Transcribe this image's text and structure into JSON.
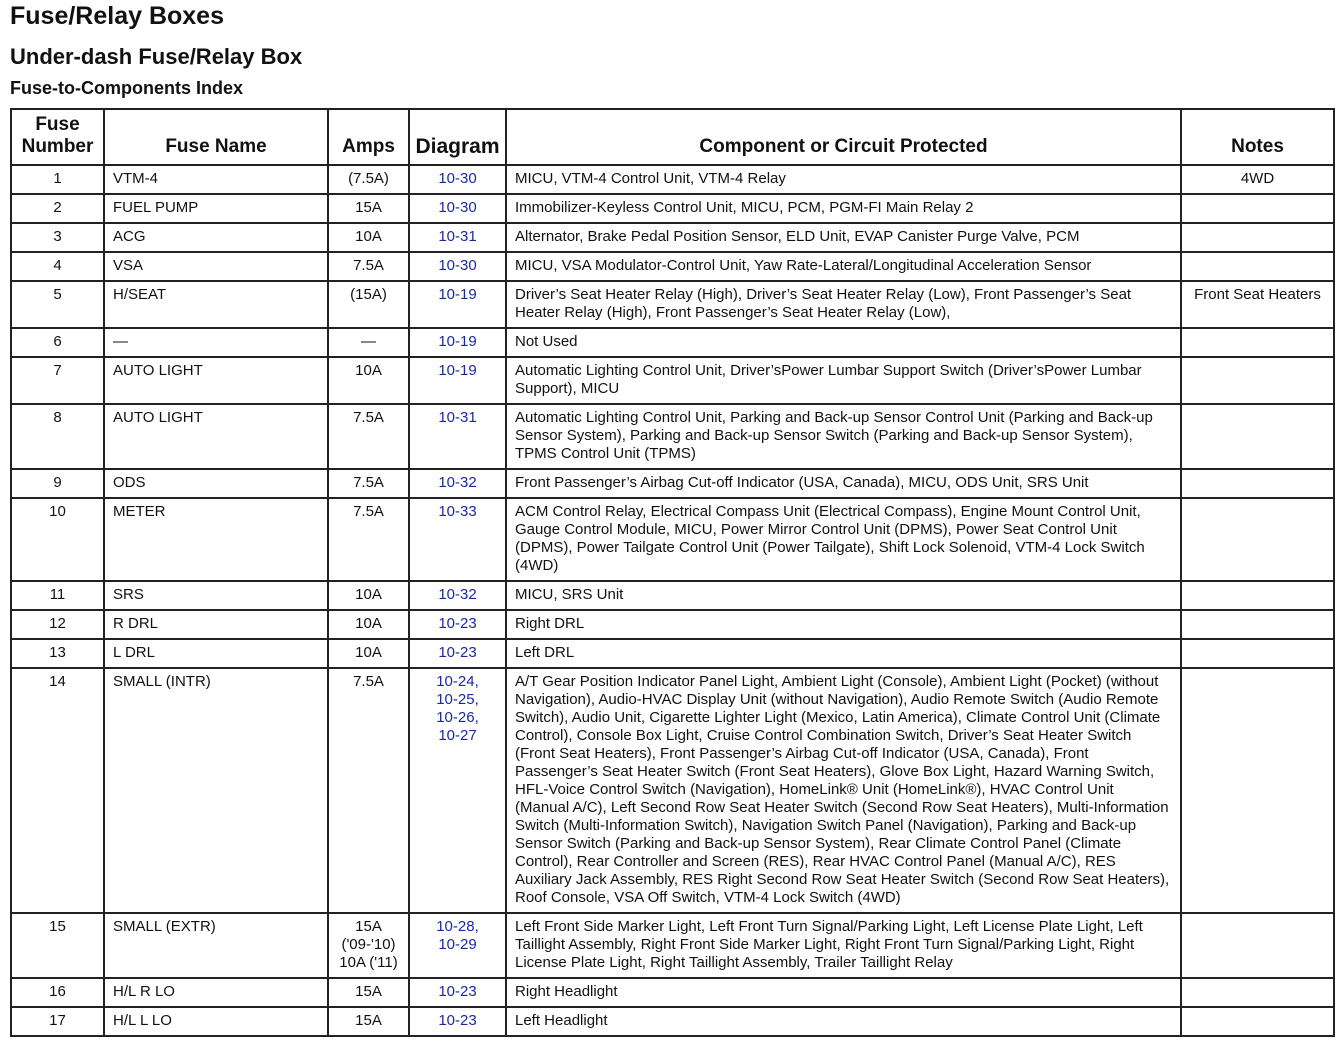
{
  "titles": {
    "h1": "Fuse/Relay Boxes",
    "h2": "Under-dash Fuse/Relay Box",
    "h3": "Fuse-to-Components Index"
  },
  "table": {
    "headers": [
      "Fuse Number",
      "Fuse Name",
      "Amps",
      "Diagram",
      "Component or Circuit Protected",
      "Notes"
    ],
    "rows": [
      {
        "number": "1",
        "name": "VTM-4",
        "amps": "(7.5A)",
        "diagram": "10-30",
        "component": "MICU, VTM-4 Control Unit, VTM-4 Relay",
        "notes": "4WD"
      },
      {
        "number": "2",
        "name": "FUEL PUMP",
        "amps": "15A",
        "diagram": "10-30",
        "component": "Immobilizer-Keyless Control Unit, MICU, PCM, PGM-FI Main Relay 2",
        "notes": ""
      },
      {
        "number": "3",
        "name": "ACG",
        "amps": "10A",
        "diagram": "10-31",
        "component": "Alternator, Brake Pedal Position Sensor, ELD Unit, EVAP Canister Purge Valve, PCM",
        "notes": ""
      },
      {
        "number": "4",
        "name": "VSA",
        "amps": "7.5A",
        "diagram": "10-30",
        "component": "MICU, VSA Modulator-Control Unit, Yaw Rate-Lateral/Longitudinal Acceleration Sensor",
        "notes": ""
      },
      {
        "number": "5",
        "name": "H/SEAT",
        "amps": "(15A)",
        "diagram": "10-19",
        "component": "Driver’s Seat Heater Relay (High), Driver’s Seat Heater Relay (Low), Front Passenger’s Seat Heater Relay (High), Front Passenger’s Seat Heater Relay (Low),",
        "notes": "Front Seat Heaters"
      },
      {
        "number": "6",
        "name": "—",
        "amps": "—",
        "diagram": "10-19",
        "component": "Not Used",
        "notes": ""
      },
      {
        "number": "7",
        "name": "AUTO LIGHT",
        "amps": "10A",
        "diagram": "10-19",
        "component": "Automatic Lighting Control Unit, Driver’sPower Lumbar Support Switch (Driver’sPower Lumbar Support), MICU",
        "notes": ""
      },
      {
        "number": "8",
        "name": "AUTO LIGHT",
        "amps": "7.5A",
        "diagram": "10-31",
        "component": "Automatic Lighting Control Unit, Parking and Back-up Sensor Control Unit (Parking and Back-up Sensor System), Parking and Back-up Sensor Switch (Parking and Back-up Sensor System), TPMS Control Unit (TPMS)",
        "notes": ""
      },
      {
        "number": "9",
        "name": "ODS",
        "amps": "7.5A",
        "diagram": "10-32",
        "component": "Front Passenger’s Airbag Cut-off Indicator (USA, Canada), MICU, ODS Unit, SRS Unit",
        "notes": ""
      },
      {
        "number": "10",
        "name": "METER",
        "amps": "7.5A",
        "diagram": "10-33",
        "component": "ACM Control Relay, Electrical Compass Unit (Electrical Compass), Engine Mount Control Unit, Gauge Control Module, MICU, Power Mirror Control Unit (DPMS), Power Seat Control Unit (DPMS), Power Tailgate Control Unit (Power Tailgate), Shift Lock Solenoid, VTM-4 Lock Switch (4WD)",
        "notes": ""
      },
      {
        "number": "11",
        "name": "SRS",
        "amps": "10A",
        "diagram": "10-32",
        "component": "MICU, SRS Unit",
        "notes": ""
      },
      {
        "number": "12",
        "name": "R DRL",
        "amps": "10A",
        "diagram": "10-23",
        "component": "Right DRL",
        "notes": ""
      },
      {
        "number": "13",
        "name": "L DRL",
        "amps": "10A",
        "diagram": "10-23",
        "component": "Left DRL",
        "notes": ""
      },
      {
        "number": "14",
        "name": "SMALL (INTR)",
        "amps": "7.5A",
        "diagram": "10-24, 10-25, 10-26, 10-27",
        "component": "A/T Gear Position Indicator Panel Light, Ambient Light (Console), Ambient Light (Pocket) (without Navigation), Audio-HVAC Display Unit (without Navigation), Audio Remote Switch (Audio Remote Switch), Audio Unit, Cigarette Lighter Light (Mexico, Latin America), Climate Control Unit (Climate Control), Console Box Light, Cruise Control Combination Switch, Driver’s Seat Heater Switch (Front Seat Heaters), Front Passenger’s Airbag Cut-off Indicator (USA, Canada), Front Passenger’s Seat Heater Switch (Front Seat Heaters), Glove Box Light, Hazard Warning Switch, HFL-Voice Control Switch (Navigation), HomeLink® Unit (HomeLink®), HVAC Control Unit (Manual A/C), Left Second Row Seat Heater Switch (Second Row Seat Heaters), Multi-Information Switch (Multi-Information Switch), Navigation Switch Panel (Navigation), Parking and Back-up Sensor Switch (Parking and Back-up Sensor System), Rear Climate Control Panel (Climate Control), Rear Controller and Screen (RES), Rear HVAC Control Panel (Manual A/C), RES Auxiliary Jack Assembly, RES Right Second Row Seat Heater Switch (Second Row Seat Heaters), Roof Console, VSA Off Switch, VTM-4 Lock Switch (4WD)",
        "notes": ""
      },
      {
        "number": "15",
        "name": "SMALL (EXTR)",
        "amps": "15A ('09-'10) 10A ('11)",
        "diagram": "10-28, 10-29",
        "component": "Left Front Side Marker Light, Left Front Turn Signal/Parking Light, Left License Plate Light, Left Taillight Assembly, Right Front Side Marker Light, Right Front Turn Signal/Parking Light, Right License Plate Light, Right Taillight Assembly, Trailer Taillight Relay",
        "notes": ""
      },
      {
        "number": "16",
        "name": "H/L R LO",
        "amps": "15A",
        "diagram": "10-23",
        "component": "Right Headlight",
        "notes": ""
      },
      {
        "number": "17",
        "name": "H/L L LO",
        "amps": "15A",
        "diagram": "10-23",
        "component": "Left Headlight",
        "notes": ""
      }
    ]
  }
}
